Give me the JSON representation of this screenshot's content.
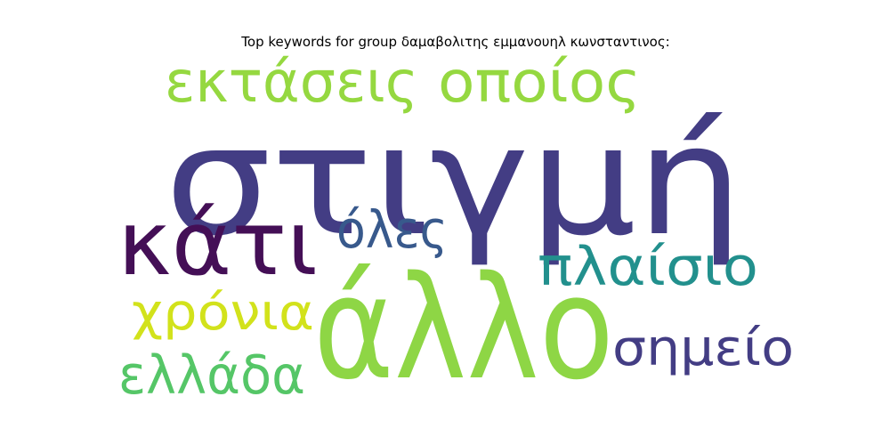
{
  "chart_data": {
    "type": "wordcloud",
    "title": "Top keywords for group δαμαβολιτης εμμανουηλ κωνσταντινος:",
    "words": [
      {
        "text": "στιγμή",
        "color": "#433d84"
      },
      {
        "text": "άλλο",
        "color": "#8ed645"
      },
      {
        "text": "κάτι",
        "color": "#440f56"
      },
      {
        "text": "εκτάσεις",
        "color": "#95d840"
      },
      {
        "text": "οποίος",
        "color": "#95d840"
      },
      {
        "text": "όλες",
        "color": "#38598c"
      },
      {
        "text": "πλαίσιο",
        "color": "#22908d"
      },
      {
        "text": "χρόνια",
        "color": "#d2e21b"
      },
      {
        "text": "σημείο",
        "color": "#433d84"
      },
      {
        "text": "ελλάδα",
        "color": "#55c667"
      }
    ]
  }
}
